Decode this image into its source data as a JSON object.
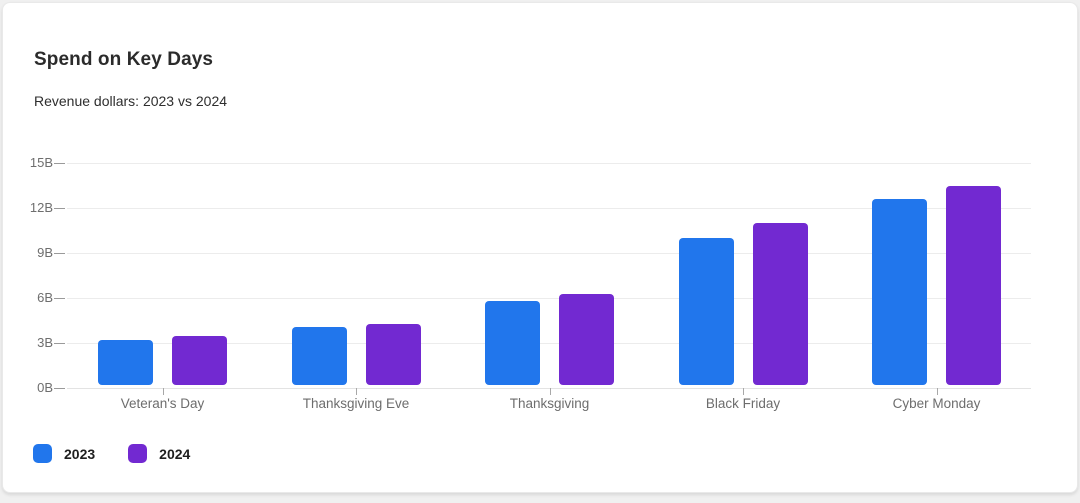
{
  "card": {
    "title": "Spend on Key Days",
    "subtitle": "Revenue dollars: 2023 vs 2024"
  },
  "chart_data": {
    "type": "bar",
    "title": "Spend on Key Days",
    "subtitle": "Revenue dollars: 2023 vs 2024",
    "categories": [
      "Veteran's Day",
      "Thanksgiving Eve",
      "Thanksgiving",
      "Black Friday",
      "Cyber Monday"
    ],
    "series": [
      {
        "name": "2023",
        "color": "#2176EC",
        "values": [
          3.0,
          3.9,
          5.6,
          9.8,
          12.4
        ]
      },
      {
        "name": "2024",
        "color": "#7229D1",
        "values": [
          3.3,
          4.1,
          6.1,
          10.8,
          13.3
        ]
      }
    ],
    "unit": "B",
    "xlabel": "",
    "ylabel": "",
    "ylim": [
      0,
      15
    ],
    "yticks": [
      0,
      3,
      6,
      9,
      12,
      15
    ],
    "ytick_labels": [
      "0B",
      "3B",
      "6B",
      "9B",
      "12B",
      "15B"
    ],
    "grid": "horizontal",
    "legend_position": "bottom-left",
    "colors": {
      "gridline": "#ececec",
      "axis_text": "#6e6e6e",
      "background": "#ffffff"
    }
  }
}
